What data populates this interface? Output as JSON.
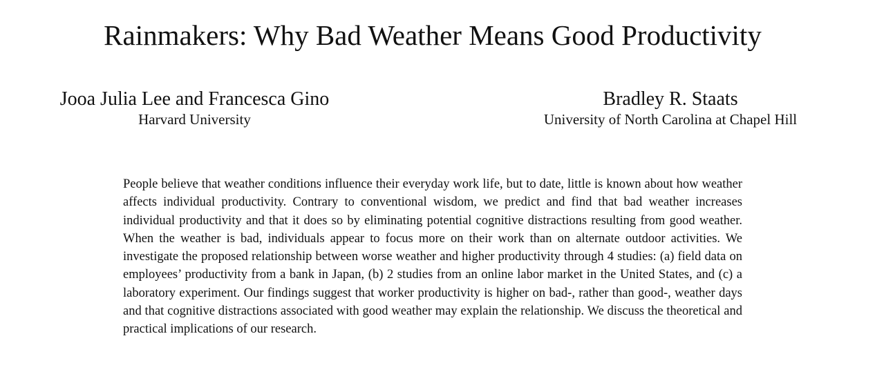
{
  "paper": {
    "title": "Rainmakers: Why Bad Weather Means Good Productivity",
    "authors": [
      {
        "names": "Jooa Julia Lee and Francesca Gino",
        "affiliation": "Harvard University"
      },
      {
        "names": "Bradley R. Staats",
        "affiliation": "University of North Carolina at Chapel Hill"
      }
    ],
    "abstract": "People believe that weather conditions influence their everyday work life, but to date, little is known about how weather affects individual productivity. Contrary to conventional wisdom, we predict and find that bad weather increases individual productivity and that it does so by eliminating potential cognitive distractions resulting from good weather. When the weather is bad, individuals appear to focus more on their work than on alternate outdoor activities. We investigate the proposed relationship between worse weather and higher productivity through 4 studies: (a) field data on employees’ productivity from a bank in Japan, (b) 2 studies from an online labor market in the United States, and (c) a laboratory experiment. Our findings suggest that worker productivity is higher on bad-, rather than good-, weather days and that cognitive distractions associated with good weather may explain the relationship. We discuss the theoretical and practical implications of our research."
  }
}
